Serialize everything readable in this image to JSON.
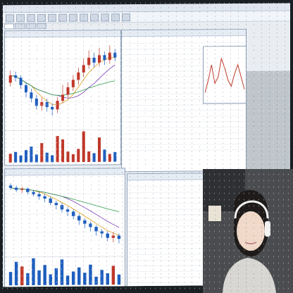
{
  "app": {
    "title": "",
    "menu": [
      "",
      "",
      "",
      "",
      "",
      ""
    ]
  },
  "colors": {
    "up": "#c0392b",
    "down": "#1f5fbf",
    "ma1": "#e0a020",
    "ma2": "#7b3fb5",
    "ma3": "#2c9a4a"
  },
  "panels": {
    "top_left_chart": {
      "candles": [
        {
          "o": 60,
          "c": 66,
          "h": 70,
          "l": 57
        },
        {
          "o": 66,
          "c": 64,
          "h": 69,
          "l": 61
        },
        {
          "o": 64,
          "c": 58,
          "h": 66,
          "l": 55
        },
        {
          "o": 58,
          "c": 52,
          "h": 60,
          "l": 48
        },
        {
          "o": 52,
          "c": 47,
          "h": 55,
          "l": 44
        },
        {
          "o": 47,
          "c": 41,
          "h": 50,
          "l": 38
        },
        {
          "o": 41,
          "c": 44,
          "h": 48,
          "l": 37
        },
        {
          "o": 44,
          "c": 40,
          "h": 47,
          "l": 36
        },
        {
          "o": 40,
          "c": 38,
          "h": 43,
          "l": 33
        },
        {
          "o": 38,
          "c": 45,
          "h": 48,
          "l": 35
        },
        {
          "o": 45,
          "c": 50,
          "h": 58,
          "l": 43
        },
        {
          "o": 50,
          "c": 56,
          "h": 60,
          "l": 47
        },
        {
          "o": 56,
          "c": 62,
          "h": 66,
          "l": 53
        },
        {
          "o": 62,
          "c": 68,
          "h": 72,
          "l": 58
        },
        {
          "o": 68,
          "c": 74,
          "h": 79,
          "l": 64
        },
        {
          "o": 74,
          "c": 80,
          "h": 86,
          "l": 71
        },
        {
          "o": 80,
          "c": 76,
          "h": 84,
          "l": 72
        },
        {
          "o": 76,
          "c": 82,
          "h": 88,
          "l": 73
        },
        {
          "o": 82,
          "c": 78,
          "h": 85,
          "l": 74
        },
        {
          "o": 78,
          "c": 84,
          "h": 90,
          "l": 75
        },
        {
          "o": 84,
          "c": 80,
          "h": 87,
          "l": 77
        }
      ],
      "volumes": [
        10,
        12,
        8,
        14,
        18,
        9,
        22,
        11,
        8,
        30,
        26,
        12,
        9,
        15,
        35,
        12,
        10,
        28,
        14,
        9,
        11
      ]
    },
    "bottom_left_chart": {
      "candles": [
        {
          "o": 88,
          "c": 86,
          "h": 90,
          "l": 84
        },
        {
          "o": 86,
          "c": 84,
          "h": 88,
          "l": 82
        },
        {
          "o": 84,
          "c": 85,
          "h": 87,
          "l": 81
        },
        {
          "o": 85,
          "c": 82,
          "h": 86,
          "l": 80
        },
        {
          "o": 82,
          "c": 80,
          "h": 84,
          "l": 78
        },
        {
          "o": 80,
          "c": 78,
          "h": 82,
          "l": 75
        },
        {
          "o": 78,
          "c": 76,
          "h": 80,
          "l": 73
        },
        {
          "o": 76,
          "c": 72,
          "h": 78,
          "l": 70
        },
        {
          "o": 72,
          "c": 70,
          "h": 74,
          "l": 66
        },
        {
          "o": 70,
          "c": 66,
          "h": 72,
          "l": 63
        },
        {
          "o": 66,
          "c": 64,
          "h": 68,
          "l": 60
        },
        {
          "o": 64,
          "c": 60,
          "h": 66,
          "l": 57
        },
        {
          "o": 60,
          "c": 56,
          "h": 62,
          "l": 52
        },
        {
          "o": 56,
          "c": 53,
          "h": 58,
          "l": 49
        },
        {
          "o": 53,
          "c": 50,
          "h": 55,
          "l": 46
        },
        {
          "o": 50,
          "c": 46,
          "h": 52,
          "l": 42
        },
        {
          "o": 46,
          "c": 44,
          "h": 48,
          "l": 40
        },
        {
          "o": 44,
          "c": 40,
          "h": 46,
          "l": 37
        },
        {
          "o": 40,
          "c": 42,
          "h": 45,
          "l": 36
        },
        {
          "o": 42,
          "c": 39,
          "h": 44,
          "l": 35
        }
      ],
      "volumes": [
        20,
        35,
        28,
        18,
        40,
        22,
        30,
        16,
        25,
        38,
        14,
        20,
        26,
        18,
        30,
        12,
        22,
        17,
        28,
        15
      ]
    },
    "top_right_chart": {
      "line": [
        52,
        60,
        70,
        58,
        62,
        74,
        68,
        60,
        56,
        64,
        70,
        62,
        54
      ]
    },
    "quote_table": {
      "rows": [
        [
          "",
          "",
          "",
          ""
        ],
        [
          "",
          "",
          "",
          ""
        ],
        [
          "",
          "",
          "",
          ""
        ],
        [
          "",
          "",
          "",
          ""
        ],
        [
          "",
          "",
          "",
          ""
        ],
        [
          "",
          "",
          "",
          ""
        ],
        [
          "",
          "",
          "",
          ""
        ],
        [
          "",
          "",
          "",
          ""
        ],
        [
          "",
          "",
          "",
          ""
        ],
        [
          "",
          "",
          "",
          ""
        ],
        [
          "",
          "",
          "",
          ""
        ],
        [
          "",
          "",
          "",
          ""
        ],
        [
          "",
          "",
          "",
          ""
        ],
        [
          "",
          "",
          "",
          ""
        ],
        [
          "",
          "",
          "",
          ""
        ],
        [
          "",
          "",
          "",
          ""
        ],
        [
          "",
          "",
          "",
          ""
        ],
        [
          "",
          "",
          "",
          ""
        ],
        [
          "",
          "",
          "",
          ""
        ],
        [
          "",
          "",
          "",
          ""
        ]
      ]
    }
  }
}
